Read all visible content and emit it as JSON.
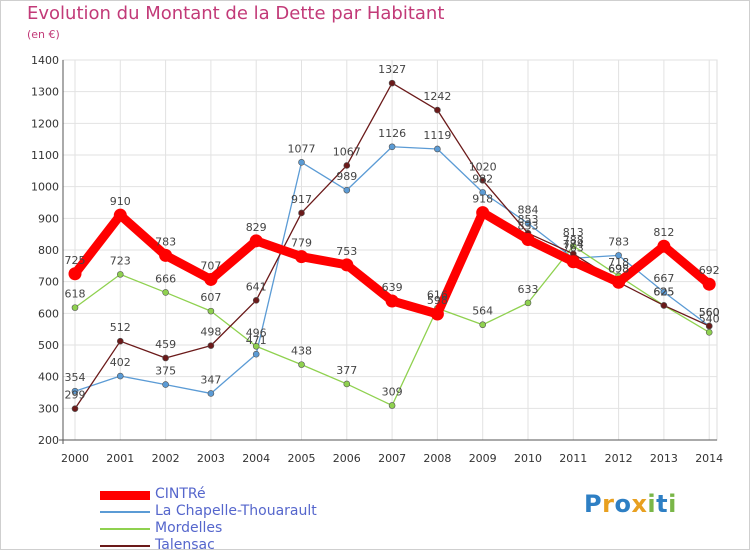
{
  "header": {
    "title": "Evolution du Montant de la Dette par Habitant",
    "unit": "(en €)"
  },
  "brand": {
    "name": "Proxiti",
    "letters": [
      {
        "ch": "P",
        "color": "#2e7fc4"
      },
      {
        "ch": "r",
        "color": "#e8a020"
      },
      {
        "ch": "o",
        "color": "#2e7fc4"
      },
      {
        "ch": "x",
        "color": "#e8a020"
      },
      {
        "ch": "i",
        "color": "#7ab648"
      },
      {
        "ch": "t",
        "color": "#2e7fc4"
      },
      {
        "ch": "i",
        "color": "#7ab648"
      }
    ]
  },
  "chart_data": {
    "type": "line",
    "title": "Evolution du Montant de la Dette par Habitant",
    "xlabel": "",
    "ylabel": "(en €)",
    "x": [
      "2000",
      "2001",
      "2002",
      "2003",
      "2004",
      "2005",
      "2006",
      "2007",
      "2008",
      "2009",
      "2010",
      "2011",
      "2012",
      "2013",
      "2014"
    ],
    "ylim": [
      200,
      1400
    ],
    "yticks": [
      200,
      300,
      400,
      500,
      600,
      700,
      800,
      900,
      1000,
      1100,
      1200,
      1300,
      1400
    ],
    "grid": true,
    "legend_position": "bottom-left",
    "series": [
      {
        "name": "CINTRé",
        "color": "#ff0000",
        "emphasis": true,
        "values": [
          725,
          910,
          783,
          707,
          829,
          779,
          753,
          639,
          598,
          918,
          833,
          763,
          698,
          812,
          692
        ],
        "labels": [
          "725",
          "910",
          "783",
          "707",
          "829",
          "779",
          "753",
          "639",
          "598",
          "918",
          "833",
          "763",
          "698",
          "812",
          "692"
        ]
      },
      {
        "name": "La Chapelle-Thouarault",
        "color": "#5b9bd5",
        "emphasis": false,
        "values": [
          354,
          402,
          375,
          347,
          471,
          1077,
          989,
          1126,
          1119,
          982,
          884,
          774,
          783,
          667,
          560
        ],
        "labels": [
          "354",
          "402",
          "375",
          "347",
          "471",
          "1077",
          "989",
          "1126",
          "1119",
          "982",
          "884",
          "774",
          "783",
          "667",
          "560"
        ]
      },
      {
        "name": "Mordelles",
        "color": "#8fd14f",
        "emphasis": false,
        "values": [
          618,
          723,
          666,
          607,
          496,
          438,
          377,
          309,
          616,
          564,
          633,
          813,
          718,
          625,
          540
        ],
        "labels": [
          "618",
          "723",
          "666",
          "607",
          "496",
          "438",
          "377",
          "309",
          "616",
          "564",
          "633",
          "813",
          "718",
          "625",
          "540"
        ]
      },
      {
        "name": "Talensac",
        "color": "#6b1a1a",
        "emphasis": false,
        "values": [
          299,
          512,
          459,
          498,
          641,
          917,
          1067,
          1327,
          1242,
          1020,
          853,
          788,
          698,
          625,
          560
        ],
        "labels": [
          "299",
          "512",
          "459",
          "498",
          "641",
          "917",
          "1067",
          "1327",
          "1242",
          "1020",
          "853",
          "788",
          "698",
          "625",
          "560"
        ]
      }
    ]
  }
}
